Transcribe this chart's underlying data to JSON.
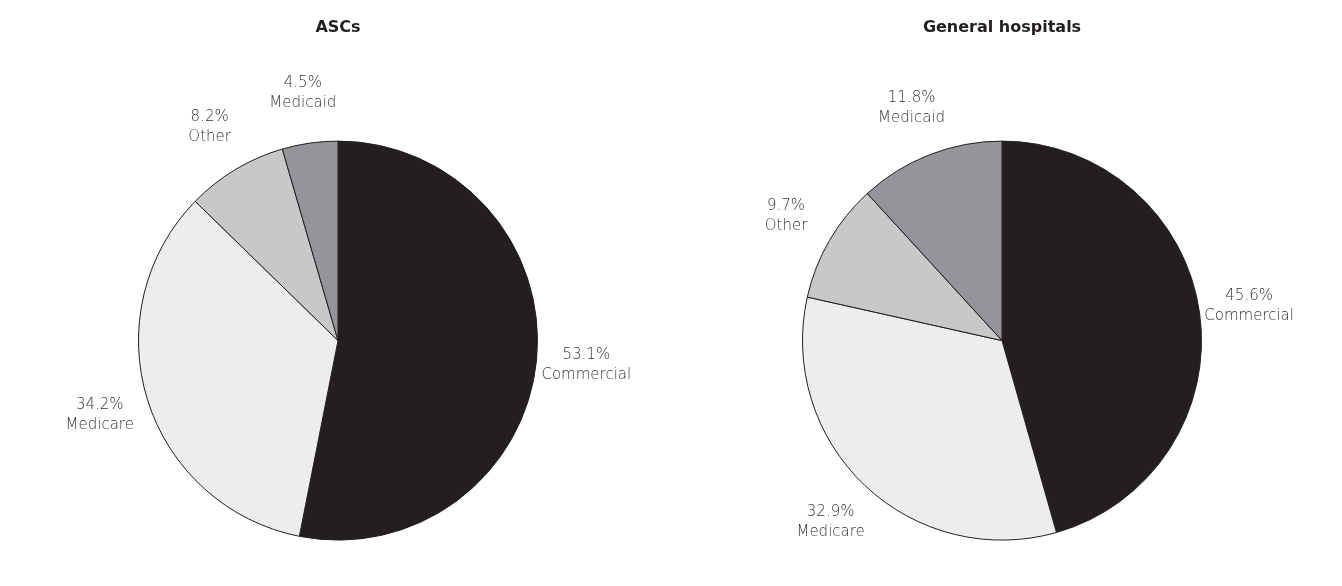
{
  "chart_data": [
    {
      "type": "pie",
      "title": "ASCs",
      "categories": [
        "Commercial",
        "Medicare",
        "Other",
        "Medicaid"
      ],
      "values": [
        53.1,
        34.2,
        8.2,
        4.5
      ],
      "value_labels": [
        "53.1%",
        "34.2%",
        "8.2%",
        "4.5%"
      ],
      "colors": [
        "#231f20",
        "#ededed",
        "#c7c8ca",
        "#939598"
      ],
      "legend": false
    },
    {
      "type": "pie",
      "title": "General hospitals",
      "categories": [
        "Commercial",
        "Medicare",
        "Other",
        "Medicaid"
      ],
      "values": [
        45.6,
        32.9,
        9.7,
        11.8
      ],
      "value_labels": [
        "45.6%",
        "32.9%",
        "9.7%",
        "11.8%"
      ],
      "colors": [
        "#231f20",
        "#ededed",
        "#c7c8ca",
        "#939598"
      ],
      "legend": false
    }
  ]
}
